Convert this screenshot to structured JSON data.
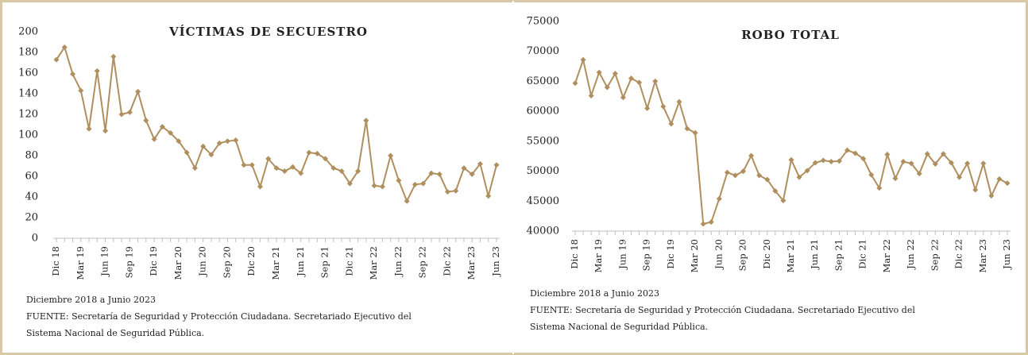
{
  "chart_data": [
    {
      "type": "line",
      "title": "VÍCTIMAS DE SECUESTRO",
      "subtitle": "Diciembre 2018 a Junio 2023",
      "source": [
        "FUENTE: Secretaría de Seguridad y Protección Ciudadana. Secretariado Ejecutivo del",
        "Sistema Nacional de Seguridad Pública."
      ],
      "color": "#b08f5e",
      "categories": [
        "Dic 18",
        null,
        null,
        "Mar 19",
        null,
        null,
        "Jun 19",
        null,
        null,
        "Sep 19",
        null,
        null,
        "Dic 19",
        null,
        null,
        "Mar 20",
        null,
        null,
        "Jun 20",
        null,
        null,
        "Sep 20",
        null,
        null,
        "Dic 20",
        null,
        null,
        "Mar 21",
        null,
        null,
        "Jun 21",
        null,
        null,
        "Sep 21",
        null,
        null,
        "Dic 21",
        null,
        null,
        "Mar 22",
        null,
        null,
        "Jun 22",
        null,
        null,
        "Sep 22",
        null,
        null,
        "Dic 22",
        null,
        null,
        "Mar 23",
        null,
        null,
        "Jun 23"
      ],
      "values": [
        173,
        185,
        159,
        143,
        106,
        162,
        104,
        176,
        120,
        122,
        142,
        114,
        96,
        108,
        102,
        94,
        83,
        68,
        89,
        81,
        92,
        94,
        95,
        71,
        71,
        50,
        77,
        68,
        65,
        69,
        63,
        83,
        82,
        77,
        68,
        65,
        53,
        65,
        114,
        51,
        50,
        80,
        56,
        36,
        52,
        53,
        63,
        62,
        45,
        46,
        68,
        62,
        72,
        41,
        71
      ],
      "ylim": [
        0,
        200
      ],
      "yticks": [
        0,
        20,
        40,
        60,
        80,
        100,
        120,
        140,
        160,
        180,
        200
      ]
    },
    {
      "type": "line",
      "title": "ROBO TOTAL",
      "subtitle": "Diciembre 2018 a Junio 2023",
      "source": [
        "FUENTE: Secretaría de Seguridad y Protección Ciudadana. Secretariado Ejecutivo del",
        "Sistema Nacional de Seguridad Pública."
      ],
      "color": "#b08f5e",
      "categories": [
        "Dic 18",
        null,
        null,
        "Mar 19",
        null,
        null,
        "Jun 19",
        null,
        null,
        "Sep 19",
        null,
        null,
        "Dic 19",
        null,
        null,
        "Mar 20",
        null,
        null,
        "Jun 20",
        null,
        null,
        "Sep 20",
        null,
        null,
        "Dic 20",
        null,
        null,
        "Mar 21",
        null,
        null,
        "Jun 21",
        null,
        null,
        "Sep 21",
        null,
        null,
        "Dic 21",
        null,
        null,
        "Mar 22",
        null,
        null,
        "Jun 22",
        null,
        null,
        "Sep 22",
        null,
        null,
        "Dic 22",
        null,
        null,
        "Mar 23",
        null,
        null,
        "Jun 23"
      ],
      "values": [
        64700,
        68600,
        62600,
        66500,
        64000,
        66300,
        62300,
        65500,
        64800,
        60500,
        65000,
        60800,
        57900,
        61600,
        57100,
        56400,
        41200,
        41500,
        45400,
        49800,
        49300,
        50000,
        52600,
        49300,
        48600,
        46700,
        45100,
        51900,
        49000,
        50100,
        51400,
        51800,
        51600,
        51700,
        53500,
        53000,
        52100,
        49400,
        47200,
        52800,
        48800,
        51600,
        51300,
        49600,
        52900,
        51200,
        52900,
        51400,
        49000,
        51300,
        46900,
        51300,
        45900,
        48700,
        48000
      ],
      "ylim": [
        40000,
        75000
      ],
      "yticks": [
        40000,
        45000,
        50000,
        55000,
        60000,
        65000,
        70000,
        75000
      ]
    }
  ]
}
